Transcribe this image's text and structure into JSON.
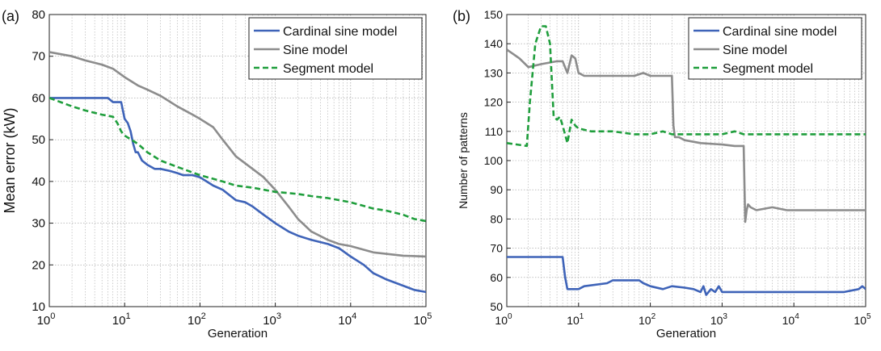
{
  "colors": {
    "cardinal": "#3e63b8",
    "sine": "#8c8c8c",
    "segment": "#1f9e3c",
    "grid": "#9a9a9a"
  },
  "chart_data": [
    {
      "panel_label": "(a)",
      "type": "line",
      "xscale": "log",
      "xlim": [
        1,
        100000
      ],
      "ylim": [
        10,
        80
      ],
      "xlabel": "Generation",
      "ylabel": "Mean error (kW)",
      "xticks": [
        "10^0",
        "10^1",
        "10^2",
        "10^3",
        "10^4",
        "10^5"
      ],
      "yticks": [
        10,
        20,
        30,
        40,
        50,
        60,
        70,
        80
      ],
      "grid": true,
      "legend_position": "top-right",
      "series": [
        {
          "name": "Cardinal sine model",
          "style": "solid",
          "x": [
            1,
            2,
            3,
            4,
            5,
            6,
            7,
            8,
            9,
            10,
            11,
            12,
            13,
            14,
            15,
            17,
            20,
            25,
            30,
            40,
            50,
            60,
            80,
            100,
            150,
            200,
            300,
            400,
            500,
            700,
            1000,
            1500,
            2000,
            3000,
            5000,
            7000,
            10000,
            15000,
            20000,
            30000,
            50000,
            70000,
            100000
          ],
          "y": [
            60,
            60,
            60,
            60,
            60,
            60,
            59,
            59,
            59,
            55,
            54,
            52,
            49,
            47,
            47,
            45,
            44,
            43,
            43,
            42.5,
            42,
            41.5,
            41.5,
            41,
            39,
            38,
            35.5,
            35,
            34,
            32,
            30,
            28,
            27,
            26,
            25,
            24,
            22,
            20,
            18,
            16.5,
            15,
            14,
            13.5
          ]
        },
        {
          "name": "Sine model",
          "style": "solid",
          "x": [
            1,
            2,
            3,
            5,
            7,
            10,
            15,
            20,
            30,
            50,
            80,
            100,
            150,
            200,
            300,
            500,
            700,
            1000,
            1500,
            2000,
            3000,
            5000,
            7000,
            10000,
            20000,
            50000,
            100000
          ],
          "y": [
            71,
            70,
            69,
            68,
            67,
            65,
            63,
            62,
            60.5,
            58,
            56,
            55,
            53,
            50,
            46,
            43,
            41,
            38,
            34,
            31,
            28,
            26,
            25,
            24.5,
            23,
            22.2,
            22
          ]
        },
        {
          "name": "Segment model",
          "style": "dashed",
          "x": [
            1,
            2,
            3,
            5,
            7,
            8,
            9,
            10,
            15,
            20,
            30,
            50,
            100,
            200,
            300,
            500,
            1000,
            2000,
            3000,
            5000,
            10000,
            20000,
            30000,
            50000,
            70000,
            100000
          ],
          "y": [
            60,
            58,
            57,
            56,
            55.5,
            54,
            52,
            51,
            49,
            47,
            45,
            43.5,
            41.5,
            40,
            39,
            38.5,
            37.5,
            37,
            36.5,
            36,
            35,
            33.5,
            33,
            32,
            31,
            30.5
          ]
        }
      ]
    },
    {
      "panel_label": "(b)",
      "type": "line",
      "xscale": "log",
      "xlim": [
        1,
        100000
      ],
      "ylim": [
        50,
        150
      ],
      "xlabel": "Generation",
      "ylabel": "Number of patterns",
      "xticks": [
        "10^0",
        "10^1",
        "10^2",
        "10^3",
        "10^4",
        "10^5"
      ],
      "yticks": [
        50,
        60,
        70,
        80,
        90,
        100,
        110,
        120,
        130,
        140,
        150
      ],
      "grid": true,
      "legend_position": "top-right",
      "series": [
        {
          "name": "Cardinal sine model",
          "style": "solid",
          "x": [
            1,
            6,
            6.5,
            7,
            10,
            12,
            25,
            30,
            70,
            80,
            100,
            150,
            200,
            300,
            400,
            500,
            550,
            600,
            700,
            800,
            900,
            1000,
            2000,
            5000,
            10000,
            50000,
            80000,
            90000,
            100000
          ],
          "y": [
            67,
            67,
            60,
            56,
            56,
            57,
            58,
            59,
            59,
            58,
            57,
            56,
            57,
            56.5,
            56,
            55,
            57,
            54,
            56,
            55,
            57,
            55,
            55,
            55,
            55,
            55,
            56,
            57,
            56
          ]
        },
        {
          "name": "Sine model",
          "style": "solid",
          "x": [
            1,
            1.5,
            2,
            3,
            5,
            6,
            7,
            8,
            9,
            10,
            12,
            15,
            30,
            60,
            80,
            100,
            150,
            200,
            210,
            220,
            250,
            300,
            500,
            1000,
            1500,
            1800,
            1900,
            2000,
            2100,
            2200,
            2300,
            2500,
            3000,
            5000,
            8000,
            10000,
            20000,
            50000,
            100000
          ],
          "y": [
            138,
            135,
            132,
            133,
            134,
            134,
            130,
            136,
            135,
            130,
            129,
            129,
            129,
            129,
            130,
            129,
            129,
            129,
            112,
            108,
            108,
            107,
            106,
            105.5,
            105,
            105,
            105,
            105,
            79,
            83,
            85,
            84,
            83,
            84,
            83,
            83,
            83,
            83,
            83
          ]
        },
        {
          "name": "Segment model",
          "style": "dashed",
          "x": [
            1,
            1.9,
            2.1,
            2.5,
            3,
            3.5,
            4,
            4.5,
            5,
            5.5,
            6,
            7,
            8,
            9,
            10,
            15,
            30,
            60,
            100,
            150,
            200,
            300,
            500,
            1000,
            1500,
            2000,
            5000,
            10000,
            50000,
            100000
          ],
          "y": [
            106,
            105,
            120,
            140,
            146,
            146,
            140,
            115,
            114,
            115,
            112,
            106,
            114,
            112,
            111,
            110,
            110,
            109,
            109,
            110,
            109,
            109,
            109,
            109,
            110,
            109,
            109,
            109,
            109,
            109
          ]
        }
      ]
    }
  ]
}
